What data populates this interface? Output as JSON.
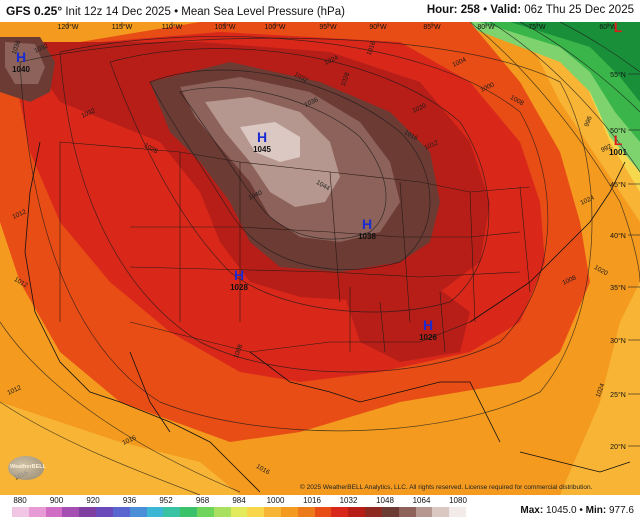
{
  "header": {
    "model": "GFS 0.25°",
    "init": "Init 12z 14 Dec 2025",
    "separator": "•",
    "field": "Mean Sea Level Pressure (hPa)",
    "hour_label": "Hour:",
    "hour_value": "258",
    "valid_label": "Valid:",
    "valid_value": "06z Thu 25 Dec 2025"
  },
  "map": {
    "longitude_labels": [
      "120°W",
      "115°W",
      "110°W",
      "105°W",
      "100°W",
      "95°W",
      "90°W",
      "85°W",
      "80°W",
      "75°W",
      "60°W"
    ],
    "latitude_labels": [
      "55°N",
      "50°N",
      "45°N",
      "40°N",
      "35°N",
      "30°N",
      "25°N",
      "20°N"
    ],
    "pressure_centers": [
      {
        "type": "H",
        "value": "1040"
      },
      {
        "type": "H",
        "value": "1045"
      },
      {
        "type": "H",
        "value": "1038"
      },
      {
        "type": "H",
        "value": "1028"
      },
      {
        "type": "H",
        "value": "1026"
      },
      {
        "type": "L",
        "value": "1001"
      },
      {
        "type": "L",
        "value": ""
      }
    ],
    "isobar_labels": [
      "1036",
      "1032",
      "1032",
      "1028",
      "1024",
      "1028",
      "1032",
      "1036",
      "1040",
      "1044",
      "1016",
      "1012",
      "1008",
      "1004",
      "1000",
      "996",
      "992",
      "1020",
      "1016",
      "1012",
      "1024",
      "1016",
      "1016",
      "1024",
      "1012",
      "1008",
      "1016",
      "1020",
      "1008",
      "1012"
    ],
    "colors": {
      "ocean_orange": "#f39a1f",
      "light_orange": "#f8b435",
      "red_orange": "#e94d16",
      "red": "#d9281a",
      "dark_red": "#b81e18",
      "brown_dark": "#6b3b34",
      "brown_mid": "#8c625a",
      "brown_light": "#b5978f",
      "pink_light": "#dcc8c2",
      "green_light": "#7fd36f",
      "green_mid": "#39b54a",
      "green_dark": "#1a8f3a",
      "yellow": "#f6d84e",
      "low_marker": "#e01b1b",
      "high_marker": "#1a2bd1"
    }
  },
  "colorbar": {
    "ticks": [
      "880",
      "900",
      "920",
      "936",
      "952",
      "968",
      "984",
      "1000",
      "1016",
      "1032",
      "1048",
      "1064",
      "1080"
    ],
    "colors": [
      "#f0c6e4",
      "#e89ad6",
      "#d06dc4",
      "#a64fb3",
      "#7f3fa0",
      "#6a4ab8",
      "#5a66cf",
      "#4b8fd6",
      "#3cb6d6",
      "#39c2a3",
      "#3ac26a",
      "#6fd45a",
      "#a9e060",
      "#e3ea5c",
      "#f8d84a",
      "#f8b435",
      "#f39a1f",
      "#ec7a1b",
      "#e94d16",
      "#d9281a",
      "#b81e18",
      "#8c2a22",
      "#6b3b34",
      "#8c625a",
      "#b5978f",
      "#dcc8c2",
      "#f2ebe8"
    ]
  },
  "footer": {
    "copyright": "© 2025 WeatherBELL Analytics, LLC. All rights reserved. License required for commercial distribution.",
    "max_label": "Max:",
    "max_value": "1045.0",
    "min_label": "Min:",
    "min_value": "977.6",
    "logo_text": "WeatherBELL"
  }
}
